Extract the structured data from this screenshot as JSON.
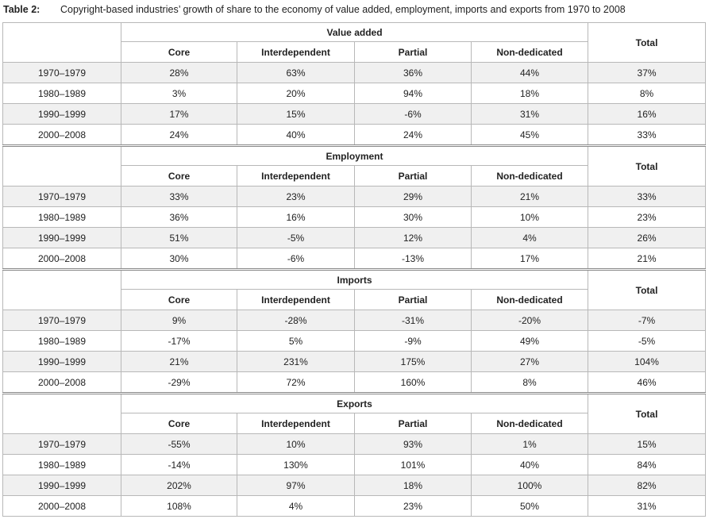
{
  "caption": {
    "label": "Table 2:",
    "title": "Copyright-based industries’ growth of share to the economy of value added, employment, imports and exports from 1970 to 2008"
  },
  "table": {
    "sections": [
      {
        "title": "Value added",
        "columns": [
          "Core",
          "Interdependent",
          "Partial",
          "Non-dedicated"
        ],
        "total": "Total",
        "rows": [
          {
            "label": "1970–1979",
            "values": [
              "28%",
              "63%",
              "36%",
              "44%",
              "37%"
            ]
          },
          {
            "label": "1980–1989",
            "values": [
              "3%",
              "20%",
              "94%",
              "18%",
              "8%"
            ]
          },
          {
            "label": "1990–1999",
            "values": [
              "17%",
              "15%",
              "-6%",
              "31%",
              "16%"
            ]
          },
          {
            "label": "2000–2008",
            "values": [
              "24%",
              "40%",
              "24%",
              "45%",
              "33%"
            ]
          }
        ]
      },
      {
        "title": "Employment",
        "columns": [
          "Core",
          "Interdependent",
          "Partial",
          "Non-dedicated"
        ],
        "total": "Total",
        "rows": [
          {
            "label": "1970–1979",
            "values": [
              "33%",
              "23%",
              "29%",
              "21%",
              "33%"
            ]
          },
          {
            "label": "1980–1989",
            "values": [
              "36%",
              "16%",
              "30%",
              "10%",
              "23%"
            ]
          },
          {
            "label": "1990–1999",
            "values": [
              "51%",
              "-5%",
              "12%",
              "4%",
              "26%"
            ]
          },
          {
            "label": "2000–2008",
            "values": [
              "30%",
              "-6%",
              "-13%",
              "17%",
              "21%"
            ]
          }
        ]
      },
      {
        "title": "Imports",
        "columns": [
          "Core",
          "Interdependent",
          "Partial",
          "Non-dedicated"
        ],
        "total": "Total",
        "rows": [
          {
            "label": "1970–1979",
            "values": [
              "9%",
              "-28%",
              "-31%",
              "-20%",
              "-7%"
            ]
          },
          {
            "label": "1980–1989",
            "values": [
              "-17%",
              "5%",
              "-9%",
              "49%",
              "-5%"
            ]
          },
          {
            "label": "1990–1999",
            "values": [
              "21%",
              "231%",
              "175%",
              "27%",
              "104%"
            ]
          },
          {
            "label": "2000–2008",
            "values": [
              "-29%",
              "72%",
              "160%",
              "8%",
              "46%"
            ]
          }
        ]
      },
      {
        "title": "Exports",
        "columns": [
          "Core",
          "Interdependent",
          "Partial",
          "Non-dedicated"
        ],
        "total": "Total",
        "rows": [
          {
            "label": "1970–1979",
            "values": [
              "-55%",
              "10%",
              "93%",
              "1%",
              "15%"
            ]
          },
          {
            "label": "1980–1989",
            "values": [
              "-14%",
              "130%",
              "101%",
              "40%",
              "84%"
            ]
          },
          {
            "label": "1990–1999",
            "values": [
              "202%",
              "97%",
              "18%",
              "100%",
              "82%"
            ]
          },
          {
            "label": "2000–2008",
            "values": [
              "108%",
              "4%",
              "23%",
              "50%",
              "31%"
            ]
          }
        ]
      }
    ]
  }
}
